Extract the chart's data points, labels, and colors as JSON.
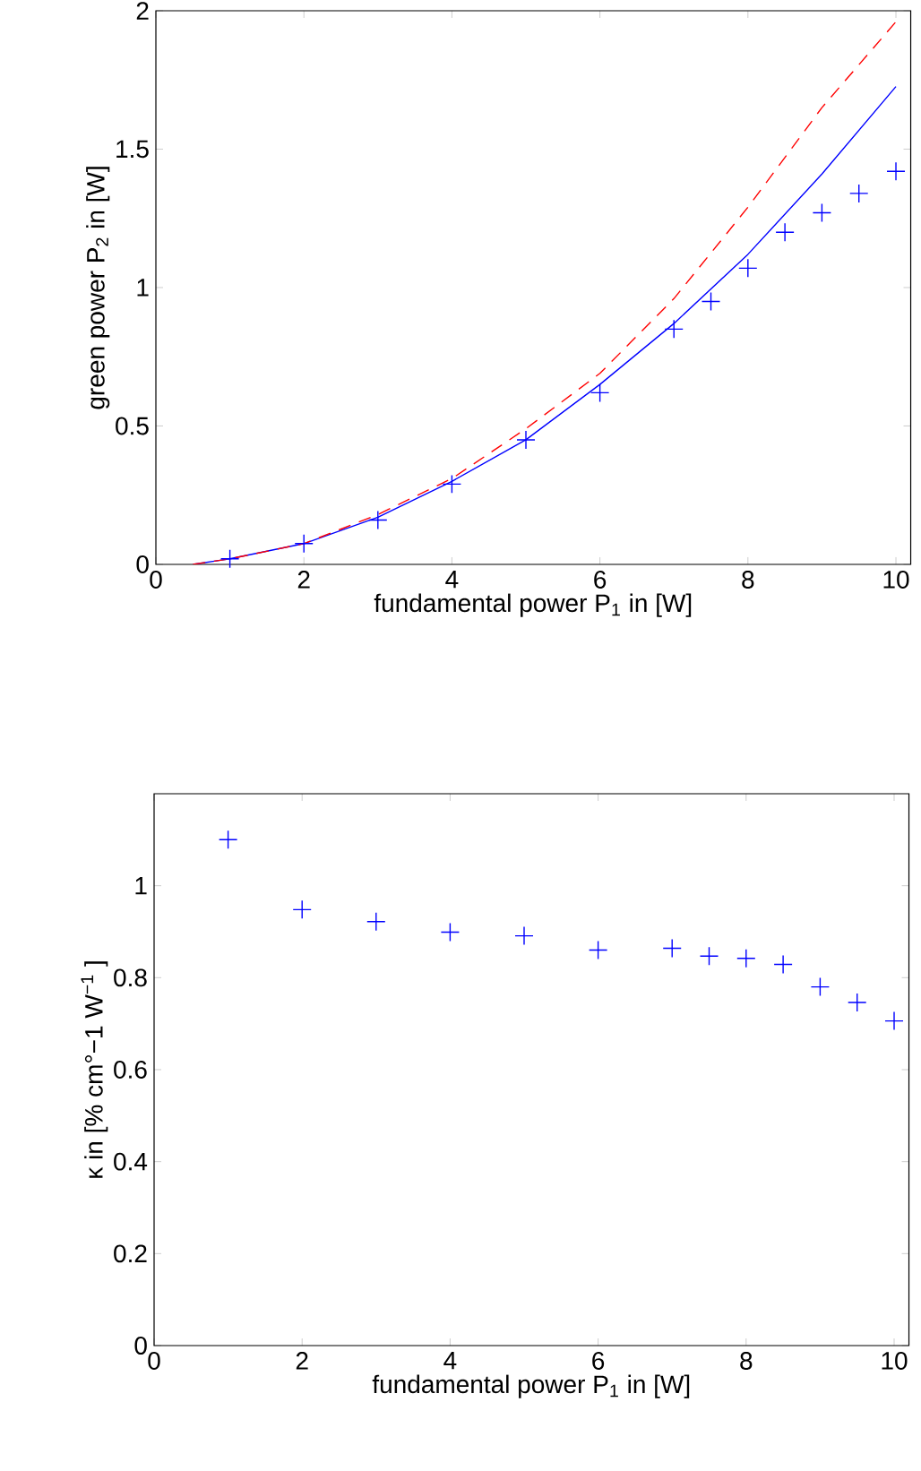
{
  "chart_data": [
    {
      "type": "scatter",
      "xlabel": "fundamental power P$_{1}$ in [W]",
      "ylabel": "green power P$_{2}$ in [W]",
      "xlim": [
        0,
        10.2
      ],
      "ylim": [
        0,
        2
      ],
      "xticks": [
        0,
        2,
        4,
        6,
        8,
        10
      ],
      "yticks": [
        0,
        0.5,
        1,
        1.5,
        2
      ],
      "grid": false,
      "series": [
        {
          "color": "#0000ff",
          "marker": "cross",
          "x": [
            1,
            2,
            3,
            4,
            5,
            6,
            7,
            7.5,
            8,
            8.5,
            9,
            9.5,
            10
          ],
          "values": [
            0.02,
            0.075,
            0.16,
            0.29,
            0.45,
            0.62,
            0.85,
            0.95,
            1.07,
            1.2,
            1.27,
            1.34,
            1.42
          ]
        },
        {
          "type": "line",
          "color": "#0000ff",
          "line_style": "solid",
          "x": [
            0.5,
            1,
            2,
            3,
            4,
            5,
            6,
            7,
            8,
            9,
            10
          ],
          "values": [
            0,
            0.02,
            0.075,
            0.17,
            0.3,
            0.45,
            0.65,
            0.87,
            1.12,
            1.41,
            1.726
          ]
        },
        {
          "type": "line",
          "color": "#ff0000",
          "line_style": "dashed",
          "x": [
            0.5,
            1,
            2,
            3,
            4,
            5,
            6,
            7,
            8,
            9,
            10
          ],
          "values": [
            0,
            0.02,
            0.075,
            0.18,
            0.31,
            0.49,
            0.69,
            0.96,
            1.29,
            1.65,
            1.96
          ]
        }
      ]
    },
    {
      "type": "scatter",
      "xlabel": "fundamental power P$_{1}$ in [W]",
      "ylabel": "κ in [% cm°−1 W$^{−1}$ ]",
      "xlim": [
        0,
        10.2
      ],
      "ylim": [
        0,
        1.2
      ],
      "xticks": [
        0,
        2,
        4,
        6,
        8,
        10
      ],
      "yticks": [
        0,
        0.2,
        0.4,
        0.6,
        0.8,
        1
      ],
      "grid": false,
      "series": [
        {
          "color": "#0000ff",
          "marker": "cross",
          "x": [
            1,
            2,
            3,
            4,
            5,
            6,
            7,
            7.5,
            8,
            8.5,
            9,
            9.5,
            10
          ],
          "values": [
            1.1,
            0.948,
            0.922,
            0.899,
            0.891,
            0.86,
            0.864,
            0.847,
            0.842,
            0.829,
            0.78,
            0.746,
            0.706
          ]
        }
      ]
    }
  ]
}
